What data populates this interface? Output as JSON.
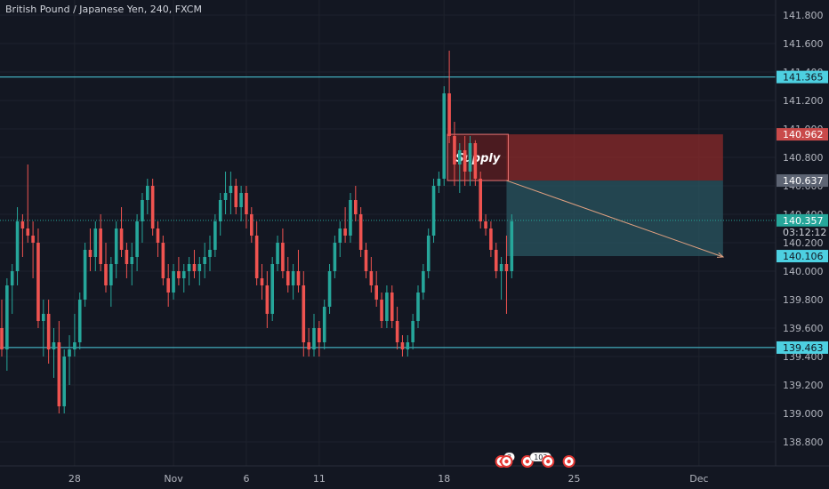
{
  "chart_data": {
    "type": "candlestick",
    "title": "British Pound / Japanese Yen, 240, FXCM",
    "ylim": [
      138.7,
      141.92
    ],
    "y_ticks": [
      "141.800",
      "141.600",
      "141.400",
      "141.200",
      "141.000",
      "140.800",
      "140.600",
      "140.400",
      "140.200",
      "140.000",
      "139.800",
      "139.600",
      "139.400",
      "139.200",
      "139.000",
      "138.800"
    ],
    "x_ticks": [
      {
        "label": "28",
        "index": 14
      },
      {
        "label": "Nov",
        "index": 33
      },
      {
        "label": "6",
        "index": 47
      },
      {
        "label": "11",
        "index": 61
      },
      {
        "label": "18",
        "index": 85
      },
      {
        "label": "25",
        "index": 110
      },
      {
        "label": "Dec",
        "index": 134
      }
    ],
    "candles_count_total": 141,
    "candles": [
      [
        139.6,
        139.8,
        139.4,
        139.45
      ],
      [
        139.45,
        139.95,
        139.3,
        139.9
      ],
      [
        139.9,
        140.05,
        139.7,
        140.0
      ],
      [
        140.0,
        140.45,
        139.9,
        140.35
      ],
      [
        140.35,
        140.4,
        140.1,
        140.3
      ],
      [
        140.3,
        140.75,
        140.2,
        140.25
      ],
      [
        140.25,
        140.35,
        139.95,
        140.2
      ],
      [
        140.2,
        140.3,
        139.6,
        139.65
      ],
      [
        139.65,
        139.8,
        139.4,
        139.7
      ],
      [
        139.7,
        139.8,
        139.35,
        139.45
      ],
      [
        139.45,
        139.6,
        139.25,
        139.5
      ],
      [
        139.5,
        139.65,
        139.0,
        139.05
      ],
      [
        139.05,
        139.45,
        139.0,
        139.4
      ],
      [
        139.4,
        139.55,
        139.2,
        139.45
      ],
      [
        139.45,
        139.7,
        139.4,
        139.5
      ],
      [
        139.5,
        139.85,
        139.45,
        139.8
      ],
      [
        139.8,
        140.2,
        139.75,
        140.15
      ],
      [
        140.15,
        140.3,
        140.0,
        140.1
      ],
      [
        140.1,
        140.35,
        140.0,
        140.3
      ],
      [
        140.3,
        140.4,
        140.0,
        140.05
      ],
      [
        140.05,
        140.2,
        139.85,
        139.9
      ],
      [
        139.9,
        140.1,
        139.75,
        140.05
      ],
      [
        140.05,
        140.35,
        139.95,
        140.3
      ],
      [
        140.3,
        140.45,
        140.1,
        140.15
      ],
      [
        140.15,
        140.2,
        139.95,
        140.05
      ],
      [
        140.05,
        140.2,
        139.9,
        140.1
      ],
      [
        140.1,
        140.4,
        140.0,
        140.35
      ],
      [
        140.35,
        140.55,
        140.2,
        140.5
      ],
      [
        140.5,
        140.65,
        140.4,
        140.6
      ],
      [
        140.6,
        140.65,
        140.25,
        140.3
      ],
      [
        140.3,
        140.35,
        140.1,
        140.2
      ],
      [
        140.2,
        140.25,
        139.9,
        139.95
      ],
      [
        139.95,
        140.05,
        139.75,
        139.85
      ],
      [
        139.85,
        140.05,
        139.8,
        140.0
      ],
      [
        140.0,
        140.1,
        139.9,
        139.95
      ],
      [
        139.95,
        140.05,
        139.85,
        140.0
      ],
      [
        140.0,
        140.1,
        139.9,
        140.05
      ],
      [
        140.05,
        140.15,
        139.95,
        140.0
      ],
      [
        140.0,
        140.1,
        139.9,
        140.05
      ],
      [
        140.05,
        140.2,
        139.95,
        140.1
      ],
      [
        140.1,
        140.25,
        140.0,
        140.15
      ],
      [
        140.15,
        140.4,
        140.1,
        140.35
      ],
      [
        140.35,
        140.55,
        140.25,
        140.5
      ],
      [
        140.5,
        140.7,
        140.4,
        140.55
      ],
      [
        140.55,
        140.7,
        140.4,
        140.6
      ],
      [
        140.6,
        140.65,
        140.4,
        140.45
      ],
      [
        140.45,
        140.6,
        140.35,
        140.55
      ],
      [
        140.55,
        140.6,
        140.3,
        140.4
      ],
      [
        140.4,
        140.45,
        140.2,
        140.25
      ],
      [
        140.25,
        140.35,
        139.9,
        139.95
      ],
      [
        139.95,
        140.05,
        139.8,
        139.9
      ],
      [
        139.9,
        140.0,
        139.6,
        139.7
      ],
      [
        139.7,
        140.1,
        139.65,
        140.05
      ],
      [
        140.05,
        140.25,
        140.0,
        140.2
      ],
      [
        140.2,
        140.3,
        139.95,
        140.0
      ],
      [
        140.0,
        140.1,
        139.85,
        139.9
      ],
      [
        139.9,
        140.05,
        139.8,
        140.0
      ],
      [
        140.0,
        140.15,
        139.85,
        139.9
      ],
      [
        139.9,
        140.0,
        139.4,
        139.5
      ],
      [
        139.5,
        139.6,
        139.4,
        139.45
      ],
      [
        139.45,
        139.7,
        139.4,
        139.6
      ],
      [
        139.6,
        139.65,
        139.4,
        139.5
      ],
      [
        139.5,
        139.8,
        139.45,
        139.75
      ],
      [
        139.75,
        140.05,
        139.7,
        140.0
      ],
      [
        140.0,
        140.25,
        139.95,
        140.2
      ],
      [
        140.2,
        140.35,
        140.1,
        140.3
      ],
      [
        140.3,
        140.45,
        140.2,
        140.25
      ],
      [
        140.25,
        140.55,
        140.2,
        140.5
      ],
      [
        140.5,
        140.6,
        140.35,
        140.4
      ],
      [
        140.4,
        140.45,
        140.1,
        140.15
      ],
      [
        140.15,
        140.2,
        139.95,
        140.0
      ],
      [
        140.0,
        140.1,
        139.85,
        139.9
      ],
      [
        139.9,
        140.0,
        139.75,
        139.8
      ],
      [
        139.8,
        139.85,
        139.6,
        139.65
      ],
      [
        139.65,
        139.9,
        139.6,
        139.85
      ],
      [
        139.85,
        139.9,
        139.6,
        139.65
      ],
      [
        139.65,
        139.75,
        139.45,
        139.5
      ],
      [
        139.5,
        139.55,
        139.4,
        139.45
      ],
      [
        139.45,
        139.55,
        139.4,
        139.5
      ],
      [
        139.5,
        139.7,
        139.45,
        139.65
      ],
      [
        139.65,
        139.9,
        139.6,
        139.85
      ],
      [
        139.85,
        140.05,
        139.8,
        140.0
      ],
      [
        140.0,
        140.3,
        139.95,
        140.25
      ],
      [
        140.25,
        140.65,
        140.2,
        140.6
      ],
      [
        140.6,
        140.7,
        140.55,
        140.65
      ],
      [
        140.65,
        141.3,
        140.6,
        141.25
      ],
      [
        141.25,
        141.55,
        140.9,
        140.95
      ],
      [
        140.95,
        141.05,
        140.6,
        140.75
      ],
      [
        140.75,
        140.9,
        140.55,
        140.85
      ],
      [
        140.85,
        140.95,
        140.6,
        140.7
      ],
      [
        140.7,
        140.95,
        140.6,
        140.9
      ],
      [
        140.9,
        140.92,
        140.6,
        140.65
      ],
      [
        140.65,
        140.7,
        140.3,
        140.35
      ],
      [
        140.35,
        140.4,
        140.25,
        140.3
      ],
      [
        140.3,
        140.35,
        140.1,
        140.15
      ],
      [
        140.15,
        140.2,
        139.95,
        140.0
      ],
      [
        140.0,
        140.1,
        139.8,
        140.05
      ],
      [
        140.05,
        140.25,
        139.7,
        140.0
      ],
      [
        140.0,
        140.4,
        139.95,
        140.35
      ]
    ],
    "horizontal_levels": [
      {
        "label": "141.365",
        "value": 141.365,
        "color": "#4dd0e1"
      },
      {
        "label": "139.463",
        "value": 139.463,
        "color": "#4dd0e1"
      }
    ],
    "price_tags": [
      {
        "label": "141.365",
        "value": 141.365,
        "bg": "#4dd0e1",
        "fg": "#131722"
      },
      {
        "label": "140.962",
        "value": 140.962,
        "bg": "#c94a4a",
        "fg": "#ffffff"
      },
      {
        "label": "140.637",
        "value": 140.637,
        "bg": "#5d6473",
        "fg": "#ffffff"
      },
      {
        "label": "140.357",
        "value": 140.357,
        "bg": "#26a69a",
        "fg": "#ffffff"
      },
      {
        "label": "140.106",
        "value": 140.106,
        "bg": "#4dd0e1",
        "fg": "#131722"
      },
      {
        "label": "139.463",
        "value": 139.463,
        "bg": "#4dd0e1",
        "fg": "#131722"
      }
    ],
    "countdown": "03:12:12",
    "current_price": 140.357,
    "supply_zone": {
      "label": "Supply",
      "from_index": 86,
      "to_index": 97,
      "top": 140.962,
      "bottom": 140.637
    },
    "short_position": {
      "from_index": 97,
      "to_index": 141,
      "stop": 140.962,
      "entry": 140.637,
      "target": 140.106,
      "stop_color": "#8b2a2a",
      "target_color": "#2a5560"
    },
    "arrow": {
      "from_index": 97,
      "from_value": 140.637,
      "to_index": 140,
      "to_value": 140.1,
      "color": "#e0a080"
    },
    "event_markers": [
      {
        "badge": "3",
        "index": 96
      },
      {
        "badge": "",
        "index": 97
      },
      {
        "badge": "103",
        "index": 101
      },
      {
        "badge": "",
        "index": 105
      },
      {
        "badge": "",
        "index": 109
      }
    ],
    "colors": {
      "up": "#26a69a",
      "down": "#ef5350",
      "background": "#131722",
      "grid": "#1e222d",
      "axis_text": "#b2b5be"
    }
  }
}
